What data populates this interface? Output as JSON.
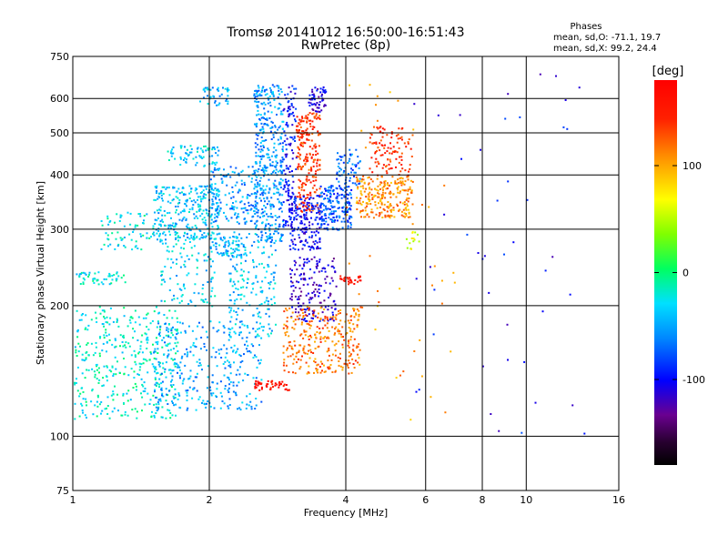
{
  "chart_data": {
    "type": "scatter",
    "title": "Tromsø 20141012 16:50:00-16:51:43",
    "subtitle": "RwPretec (8p)",
    "xlabel": "Frequency [MHz]",
    "ylabel": "Stationary phase Virtual Height [km]",
    "x_scale": "log",
    "y_scale": "log",
    "xlim": [
      1,
      16
    ],
    "ylim": [
      75,
      750
    ],
    "x_ticks": [
      "1",
      "2",
      "4",
      "6",
      "8",
      "10",
      "16"
    ],
    "y_ticks": [
      "75",
      "100",
      "200",
      "300",
      "400",
      "500",
      "600",
      "750"
    ],
    "grid": true,
    "stats": {
      "header": "Phases",
      "line1": "mean, sd,O: -71.1, 19.7",
      "line2": "mean, sd,X:  99.2, 24.4"
    },
    "colorbar": {
      "label": "[deg]",
      "ticks": [
        "100",
        "0",
        "-100"
      ],
      "range": [
        -180,
        180
      ]
    },
    "clusters": [
      {
        "x": [
          1.0,
          1.7
        ],
        "y": [
          110,
          200
        ],
        "phase": -20,
        "n": 420
      },
      {
        "x": [
          1.0,
          1.3
        ],
        "y": [
          225,
          240
        ],
        "phase": -25,
        "n": 50
      },
      {
        "x": [
          1.15,
          1.5
        ],
        "y": [
          270,
          330
        ],
        "phase": -25,
        "n": 70
      },
      {
        "x": [
          1.5,
          2.1
        ],
        "y": [
          285,
          380
        ],
        "phase": -40,
        "n": 280
      },
      {
        "x": [
          1.6,
          2.1
        ],
        "y": [
          420,
          470
        ],
        "phase": -35,
        "n": 70
      },
      {
        "x": [
          1.9,
          2.2
        ],
        "y": [
          580,
          640
        ],
        "phase": -45,
        "n": 40
      },
      {
        "x": [
          2.0,
          2.4
        ],
        "y": [
          260,
          290
        ],
        "phase": -45,
        "n": 70
      },
      {
        "x": [
          2.0,
          2.55
        ],
        "y": [
          310,
          420
        ],
        "phase": -55,
        "n": 160
      },
      {
        "x": [
          1.5,
          2.6
        ],
        "y": [
          115,
          185
        ],
        "phase": -50,
        "n": 320
      },
      {
        "x": [
          1.55,
          2.05
        ],
        "y": [
          200,
          300
        ],
        "phase": -35,
        "n": 120
      },
      {
        "x": [
          2.2,
          2.8
        ],
        "y": [
          170,
          300
        ],
        "phase": -40,
        "n": 180
      },
      {
        "x": [
          2.5,
          2.9
        ],
        "y": [
          280,
          650
        ],
        "phase": -55,
        "n": 420
      },
      {
        "x": [
          2.9,
          3.1
        ],
        "y": [
          300,
          650
        ],
        "phase": -95,
        "n": 130
      },
      {
        "x": [
          3.1,
          3.5
        ],
        "y": [
          330,
          560
        ],
        "phase": 140,
        "n": 220
      },
      {
        "x": [
          3.3,
          3.6
        ],
        "y": [
          560,
          640
        ],
        "phase": -110,
        "n": 60
      },
      {
        "x": [
          3.0,
          3.5
        ],
        "y": [
          270,
          360
        ],
        "phase": -100,
        "n": 170
      },
      {
        "x": [
          3.5,
          4.1
        ],
        "y": [
          300,
          380
        ],
        "phase": -75,
        "n": 200
      },
      {
        "x": [
          3.8,
          4.3
        ],
        "y": [
          380,
          460
        ],
        "phase": -70,
        "n": 60
      },
      {
        "x": [
          4.2,
          5.6
        ],
        "y": [
          320,
          400
        ],
        "phase": 110,
        "n": 240
      },
      {
        "x": [
          4.5,
          5.6
        ],
        "y": [
          400,
          520
        ],
        "phase": 145,
        "n": 110
      },
      {
        "x": [
          3.0,
          3.8
        ],
        "y": [
          185,
          260
        ],
        "phase": -115,
        "n": 170
      },
      {
        "x": [
          2.9,
          4.3
        ],
        "y": [
          140,
          200
        ],
        "phase": 120,
        "n": 300
      },
      {
        "x": [
          2.5,
          3.0
        ],
        "y": [
          128,
          135
        ],
        "phase": 165,
        "n": 50
      },
      {
        "x": [
          3.8,
          4.3
        ],
        "y": [
          225,
          235
        ],
        "phase": 160,
        "n": 30
      },
      {
        "x": [
          5.4,
          5.8
        ],
        "y": [
          270,
          300
        ],
        "phase": 60,
        "n": 14
      },
      {
        "x": [
          4.0,
          7.0
        ],
        "y": [
          100,
          650
        ],
        "phase": 110,
        "n": 45
      },
      {
        "x": [
          5.5,
          13.5
        ],
        "y": [
          100,
          700
        ],
        "phase": -100,
        "n": 45
      }
    ]
  }
}
